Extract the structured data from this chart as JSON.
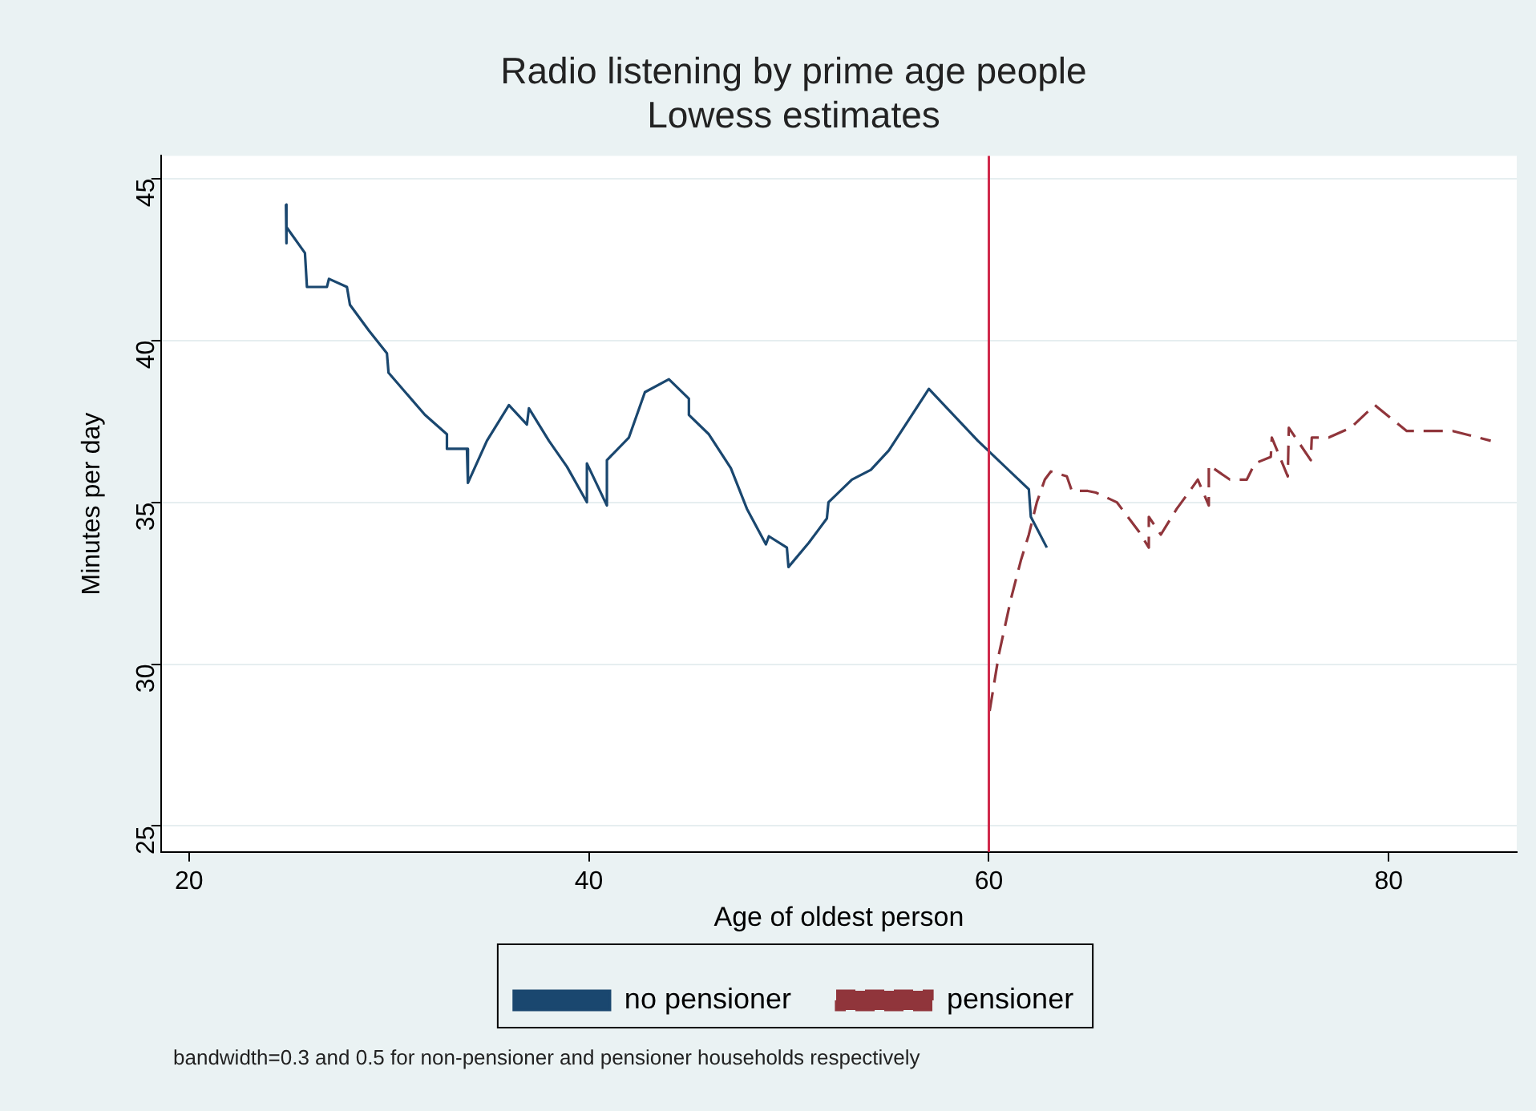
{
  "chart_data": {
    "type": "line",
    "title": "Radio listening by prime age people",
    "subtitle": "Lowess estimates",
    "xlabel": "Age of oldest person",
    "ylabel": "Minutes per day",
    "xlim": [
      18.6,
      86.4
    ],
    "xticks": [
      20,
      40,
      60,
      80
    ],
    "ylim": [
      24.2,
      45.7
    ],
    "yticks": [
      25,
      30,
      35,
      40,
      45
    ],
    "grid": "y",
    "legend": "bottom",
    "marker": "none",
    "ref_lines": [
      {
        "axis": "x",
        "value": 60,
        "color": "#d0284a"
      }
    ],
    "annotations": [
      "bandwidth=0.3 and 0.5 for non-pensioner and pensioner households respectively"
    ],
    "series": [
      {
        "name": "no pensioner",
        "color": "#1a476f",
        "line_style": "solid",
        "x": [
          24.85,
          24.85,
          24.9,
          25.8,
          25.9,
          26.9,
          27.0,
          27.9,
          28.05,
          29.0,
          29.9,
          29.98,
          31.8,
          32.9,
          32.9,
          33.9,
          33.95,
          34.9,
          36.0,
          36.9,
          37.0,
          38.0,
          38.9,
          39.9,
          39.9,
          40.9,
          40.9,
          42.0,
          42.8,
          44.0,
          45.0,
          45.0,
          46.0,
          47.1,
          47.9,
          48.85,
          49.0,
          49.9,
          49.98,
          51.0,
          51.9,
          51.98,
          53.15,
          54.1,
          55.0,
          57.0,
          59.45,
          62.0,
          62.1,
          62.9
        ],
        "values": [
          44.2,
          43.0,
          43.5,
          42.7,
          41.65,
          41.65,
          41.9,
          41.65,
          41.1,
          40.3,
          39.6,
          39.0,
          37.7,
          37.1,
          36.65,
          36.65,
          35.6,
          36.9,
          38.0,
          37.4,
          37.9,
          36.9,
          36.1,
          35.0,
          36.2,
          34.9,
          36.3,
          37.0,
          38.4,
          38.8,
          38.2,
          37.7,
          37.1,
          36.05,
          34.8,
          33.7,
          33.95,
          33.6,
          33.0,
          33.75,
          34.5,
          35.0,
          35.7,
          36.0,
          36.6,
          38.5,
          36.9,
          35.4,
          34.55,
          33.6
        ]
      },
      {
        "name": "pensioner",
        "color": "#90353b",
        "line_style": "dashed",
        "x": [
          60.04,
          60.5,
          61.1,
          61.6,
          62.0,
          62.4,
          62.8,
          63.1,
          63.9,
          64.15,
          64.95,
          65.35,
          66.4,
          66.95,
          67.5,
          68.0,
          68.0,
          68.6,
          69.4,
          70.05,
          70.45,
          71.0,
          71.0,
          72.05,
          72.9,
          73.3,
          74.1,
          74.15,
          74.95,
          75.0,
          76.1,
          76.15,
          77.0,
          78.1,
          79.3,
          80.1,
          80.9,
          82.0,
          83.2,
          85.1
        ],
        "values": [
          28.55,
          30.3,
          32.0,
          33.2,
          34.0,
          35.0,
          35.7,
          35.95,
          35.8,
          35.35,
          35.35,
          35.3,
          35.0,
          34.55,
          34.1,
          33.6,
          34.55,
          34.0,
          34.8,
          35.35,
          35.7,
          34.9,
          36.15,
          35.7,
          35.7,
          36.2,
          36.4,
          37.0,
          35.8,
          37.3,
          36.3,
          37.0,
          37.0,
          37.3,
          38.0,
          37.6,
          37.2,
          37.2,
          37.2,
          36.9
        ]
      }
    ]
  }
}
